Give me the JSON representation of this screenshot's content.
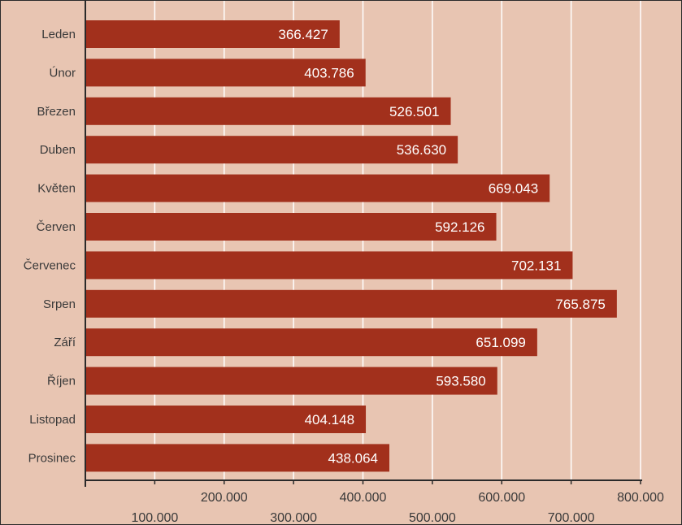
{
  "chart_data": {
    "type": "bar",
    "orientation": "horizontal",
    "categories": [
      "Leden",
      "Únor",
      "Březen",
      "Duben",
      "Květen",
      "Červen",
      "Červenec",
      "Srpen",
      "Září",
      "Říjen",
      "Listopad",
      "Prosinec"
    ],
    "values": [
      366427,
      403786,
      526501,
      536630,
      669043,
      592126,
      702131,
      765875,
      651099,
      593580,
      404148,
      438064
    ],
    "value_labels": [
      "366.427",
      "403.786",
      "526.501",
      "536.630",
      "669.043",
      "592.126",
      "702.131",
      "765.875",
      "651.099",
      "593.580",
      "404.148",
      "438.064"
    ],
    "title": "",
    "xlabel": "",
    "ylabel": "",
    "xlim": [
      0,
      800000
    ],
    "xticks": [
      100000,
      200000,
      300000,
      400000,
      500000,
      600000,
      700000,
      800000
    ],
    "xtick_labels": [
      "100.000",
      "200.000",
      "300.000",
      "400.000",
      "500.000",
      "600.000",
      "700.000",
      "800.000"
    ],
    "grid": true,
    "legend": "none",
    "colors": {
      "background": "#e8c5b2",
      "bar": "#a2301c",
      "grid": "#ffffff",
      "axis": "#2a2a2a"
    }
  }
}
